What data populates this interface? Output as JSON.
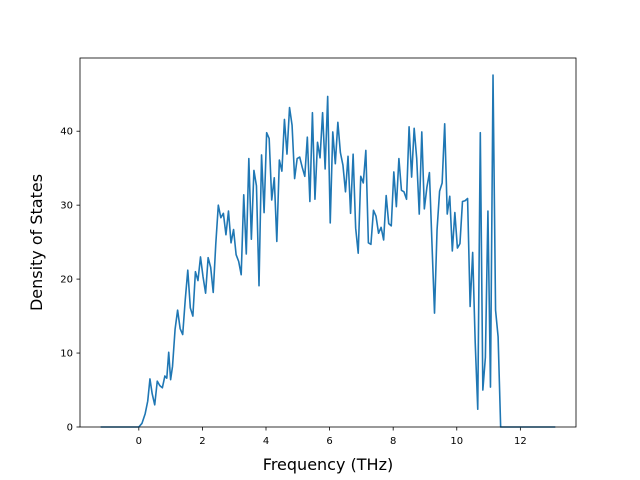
{
  "chart_data": {
    "type": "line",
    "xlabel": "Frequency (THz)",
    "ylabel": "Density of States",
    "xlim": [
      -1.85,
      13.75
    ],
    "ylim": [
      0,
      49.9
    ],
    "xticks": [
      0,
      2,
      4,
      6,
      8,
      10,
      12
    ],
    "yticks": [
      0,
      10,
      20,
      30,
      40
    ],
    "grid": false,
    "color": "#1f77b4",
    "series": [
      {
        "x": [
          -1.2,
          -0.8,
          -0.4,
          0.0,
          0.1,
          0.2,
          0.28,
          0.35,
          0.42,
          0.5,
          0.58,
          0.66,
          0.74,
          0.82,
          0.88,
          0.94,
          1.0,
          1.06,
          1.14,
          1.22,
          1.3,
          1.38,
          1.46,
          1.54,
          1.62,
          1.7,
          1.78,
          1.86,
          1.94,
          2.02,
          2.1,
          2.18,
          2.26,
          2.34,
          2.42,
          2.5,
          2.58,
          2.66,
          2.74,
          2.82,
          2.9,
          2.98,
          3.06,
          3.14,
          3.22,
          3.3,
          3.38,
          3.46,
          3.54,
          3.62,
          3.7,
          3.78,
          3.86,
          3.94,
          4.02,
          4.1,
          4.18,
          4.26,
          4.34,
          4.42,
          4.5,
          4.58,
          4.66,
          4.74,
          4.82,
          4.9,
          4.98,
          5.06,
          5.14,
          5.22,
          5.3,
          5.38,
          5.46,
          5.54,
          5.62,
          5.7,
          5.78,
          5.86,
          5.94,
          6.02,
          6.1,
          6.18,
          6.26,
          6.34,
          6.42,
          6.5,
          6.58,
          6.66,
          6.74,
          6.82,
          6.9,
          6.98,
          7.06,
          7.14,
          7.22,
          7.3,
          7.38,
          7.46,
          7.54,
          7.62,
          7.7,
          7.78,
          7.86,
          7.94,
          8.02,
          8.1,
          8.18,
          8.26,
          8.34,
          8.42,
          8.5,
          8.58,
          8.66,
          8.74,
          8.82,
          8.9,
          8.98,
          9.06,
          9.14,
          9.22,
          9.3,
          9.38,
          9.46,
          9.54,
          9.62,
          9.7,
          9.78,
          9.86,
          9.94,
          10.02,
          10.1,
          10.18,
          10.26,
          10.34,
          10.42,
          10.5,
          10.58,
          10.66,
          10.74,
          10.82,
          10.9,
          10.98,
          11.06,
          11.14,
          11.22,
          11.3,
          11.38,
          11.6,
          12.2,
          13.1
        ],
        "y": [
          0,
          0,
          0,
          0,
          0.5,
          1.8,
          3.5,
          6.5,
          4.5,
          3.0,
          6.2,
          5.6,
          5.3,
          6.9,
          6.6,
          10.1,
          6.4,
          8.2,
          13.2,
          15.8,
          13.3,
          12.5,
          17.2,
          21.2,
          16.1,
          15.0,
          21.0,
          19.8,
          23.0,
          20.3,
          18.1,
          22.9,
          21.6,
          18.2,
          24.7,
          30.0,
          28.3,
          28.9,
          26.0,
          29.2,
          24.9,
          26.7,
          23.3,
          22.4,
          20.6,
          31.4,
          23.4,
          36.3,
          25.4,
          34.7,
          32.6,
          19.1,
          36.8,
          29.0,
          39.8,
          39.0,
          30.7,
          33.7,
          25.1,
          36.1,
          34.6,
          41.6,
          36.9,
          43.2,
          40.8,
          33.6,
          36.3,
          36.5,
          35.1,
          33.9,
          39.2,
          30.5,
          42.5,
          30.8,
          38.5,
          36.4,
          42.5,
          34.9,
          44.7,
          27.6,
          39.9,
          35.6,
          41.2,
          37.1,
          35.4,
          31.8,
          36.6,
          28.9,
          36.9,
          26.9,
          23.5,
          33.9,
          33.0,
          37.4,
          24.9,
          24.7,
          29.3,
          28.5,
          26.2,
          27.0,
          25.3,
          31.3,
          27.5,
          27.2,
          34.5,
          29.8,
          36.3,
          32.0,
          31.8,
          30.8,
          40.6,
          33.8,
          40.4,
          36.3,
          28.8,
          39.9,
          29.5,
          32.4,
          34.4,
          24.8,
          15.4,
          26.7,
          31.9,
          33.0,
          41.0,
          28.8,
          31.2,
          23.8,
          29.0,
          24.2,
          24.8,
          30.5,
          30.6,
          30.9,
          16.3,
          23.6,
          11.4,
          2.4,
          39.8,
          5.0,
          9.4,
          29.2,
          5.4,
          47.6,
          15.8,
          12.2,
          0,
          0,
          0,
          0
        ]
      }
    ]
  }
}
